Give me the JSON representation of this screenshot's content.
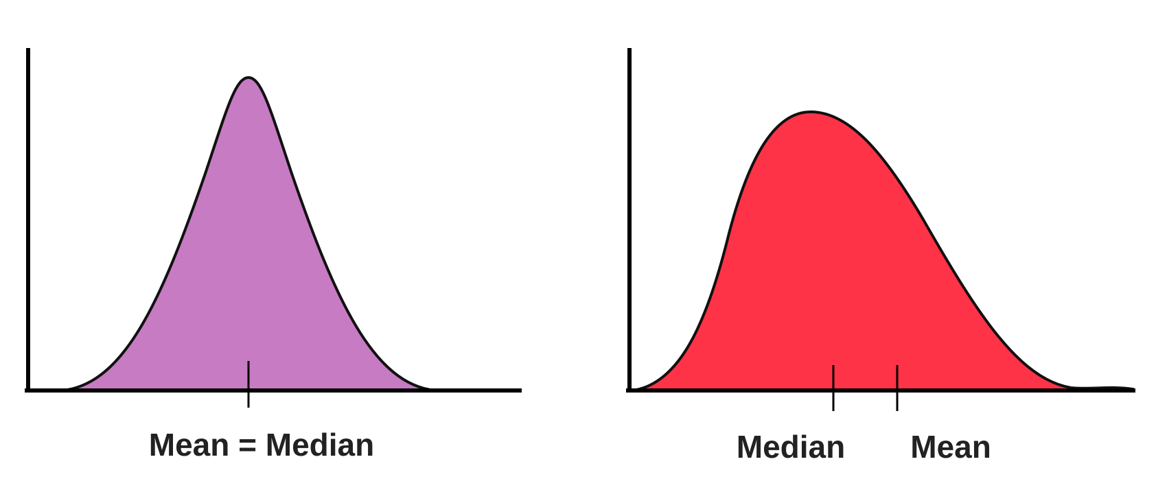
{
  "left": {
    "label": "Mean = Median"
  },
  "right": {
    "median_label": "Median",
    "mean_label": "Mean"
  }
}
